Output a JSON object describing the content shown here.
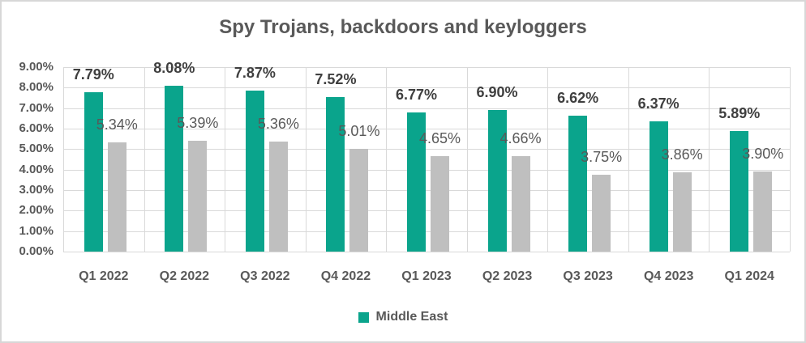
{
  "chart_data": {
    "type": "bar",
    "title": "Spy Trojans, backdoors and keyloggers",
    "categories": [
      "Q1 2022",
      "Q2 2022",
      "Q3 2022",
      "Q4 2022",
      "Q1 2023",
      "Q2 2023",
      "Q3 2023",
      "Q4 2023",
      "Q1 2024"
    ],
    "series": [
      {
        "name": "Middle East",
        "color": "#0aa48c",
        "in_legend": true,
        "values": [
          7.79,
          8.08,
          7.87,
          7.52,
          6.77,
          6.9,
          6.62,
          6.37,
          5.89
        ]
      },
      {
        "name": "",
        "color": "#bfbfbf",
        "in_legend": false,
        "values": [
          5.34,
          5.39,
          5.36,
          5.01,
          4.65,
          4.66,
          3.75,
          3.86,
          3.9
        ]
      }
    ],
    "value_suffix": "%",
    "ylabel": "",
    "xlabel": "",
    "ylim": [
      0,
      9
    ],
    "y_axis": {
      "ticks": [
        "0.00%",
        "1.00%",
        "2.00%",
        "3.00%",
        "4.00%",
        "5.00%",
        "6.00%",
        "7.00%",
        "8.00%",
        "9.00%"
      ]
    },
    "grid": {
      "horizontal": true,
      "vertical": true,
      "color": "#d9d9d9"
    },
    "legend": {
      "position": "bottom",
      "entries": [
        "Middle East"
      ]
    }
  },
  "styles": {
    "title_color": "#595959",
    "axis_text_color": "#595959",
    "series1_label_color": "#3f3f3f",
    "series2_label_color": "#595959",
    "border_color": "#d7d7d7",
    "background": "#ffffff"
  }
}
